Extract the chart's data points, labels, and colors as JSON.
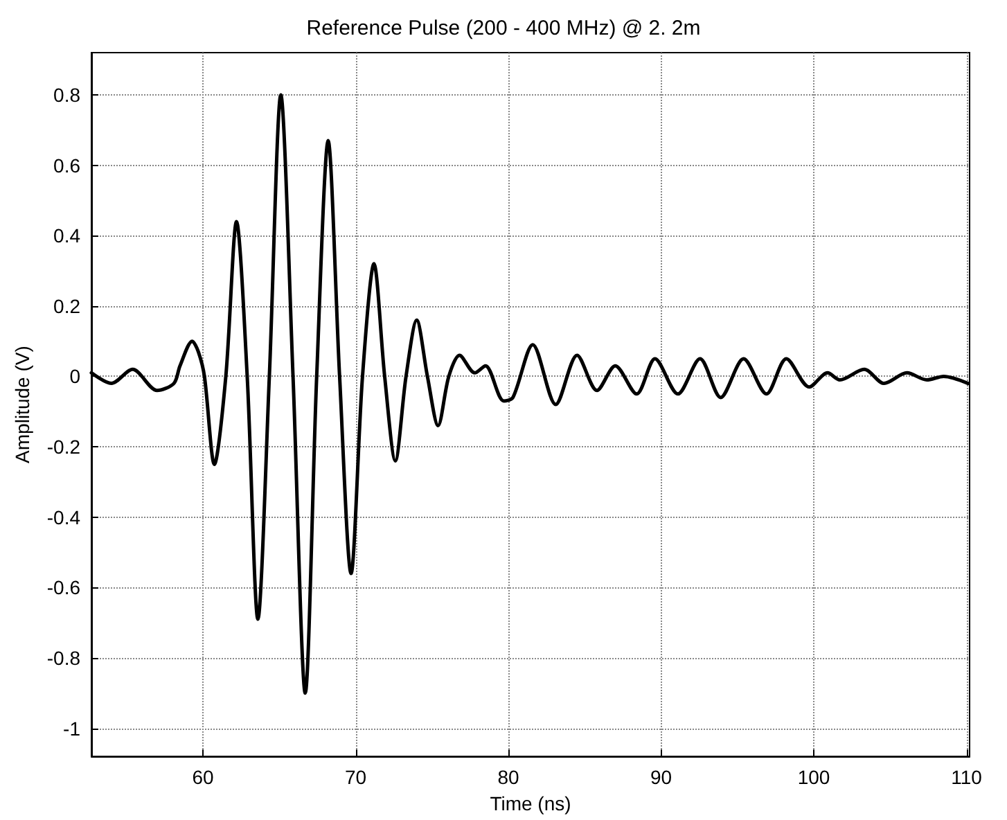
{
  "chart_data": {
    "type": "line",
    "title": "Reference Pulse (200 - 400 MHz) @ 2. 2m",
    "xlabel": "Time (ns)",
    "ylabel": "Amplitude (V)",
    "xlim": [
      52.7,
      110.2
    ],
    "xticks": [
      60,
      70,
      80,
      90,
      100,
      110
    ],
    "ylim": [
      -1.08,
      0.92
    ],
    "yticks": [
      -1,
      -0.8,
      -0.6,
      -0.4,
      -0.2,
      0,
      0.2,
      0.4,
      0.6,
      0.8
    ],
    "grid": true,
    "marker": "none",
    "line_style": "solid",
    "series": [
      {
        "color": "#000000",
        "x": [
          52.7,
          54.0,
          55.4,
          57.0,
          58.1,
          58.5,
          59.3,
          59.7,
          60.1,
          60.75,
          61.5,
          62.2,
          62.9,
          63.6,
          64.35,
          65.1,
          65.9,
          66.7,
          67.45,
          68.2,
          68.95,
          69.7,
          70.45,
          71.2,
          71.9,
          72.6,
          73.3,
          74.0,
          74.7,
          75.4,
          76.1,
          76.8,
          77.8,
          78.5,
          79.7,
          80.3,
          81.6,
          83.1,
          84.5,
          85.8,
          87.0,
          88.4,
          89.6,
          91.1,
          92.55,
          93.9,
          95.4,
          96.9,
          98.2,
          99.7,
          100.9,
          101.7,
          103.3,
          104.6,
          106.1,
          107.4,
          108.5,
          110.1
        ],
        "values": [
          0.01,
          -0.02,
          0.02,
          -0.04,
          -0.02,
          0.03,
          0.1,
          0.07,
          0,
          -0.25,
          0,
          0.44,
          0,
          -0.69,
          0,
          0.8,
          0,
          -0.9,
          0,
          0.67,
          0,
          -0.56,
          0,
          0.32,
          0,
          -0.24,
          0,
          0.16,
          0,
          -0.14,
          0,
          0.06,
          0.01,
          0.03,
          -0.07,
          -0.06,
          0.09,
          -0.08,
          0.06,
          -0.04,
          0.03,
          -0.05,
          0.05,
          -0.05,
          0.05,
          -0.06,
          0.05,
          -0.05,
          0.05,
          -0.03,
          0.01,
          -0.01,
          0.02,
          -0.02,
          0.01,
          -0.01,
          0.0,
          -0.02
        ]
      }
    ]
  }
}
